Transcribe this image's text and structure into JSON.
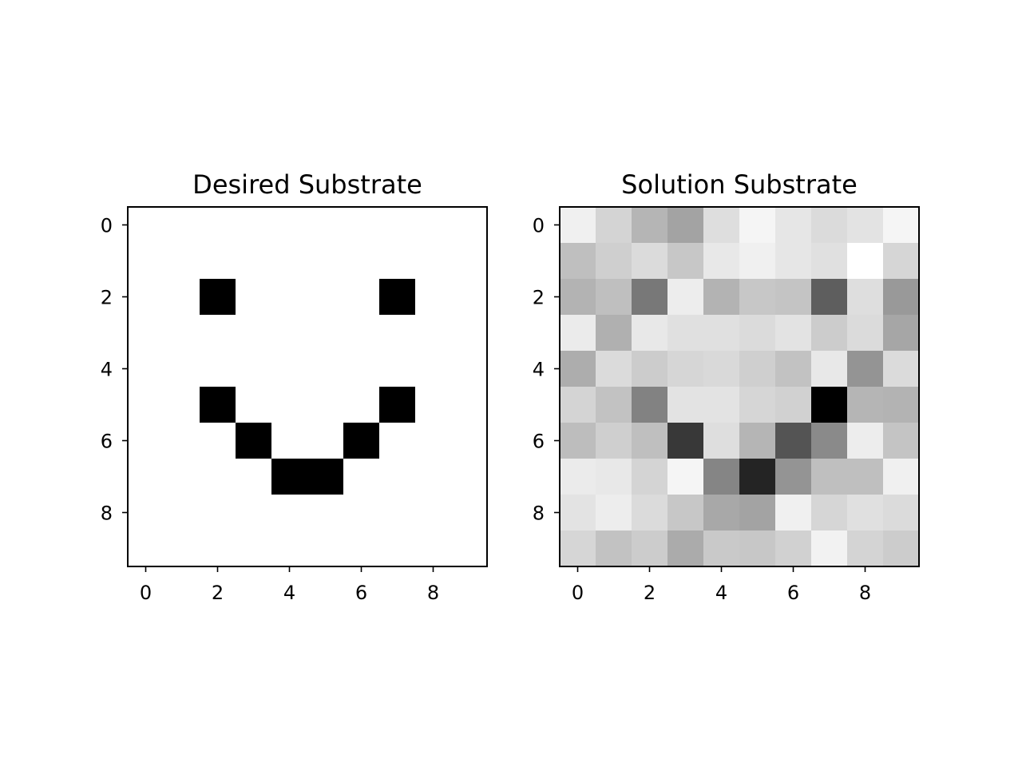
{
  "chart_data": [
    {
      "type": "heatmap",
      "title": "Desired Substrate",
      "colormap": "gray_r",
      "vmin": 0,
      "vmax": 1,
      "xticks": [
        0,
        2,
        4,
        6,
        8
      ],
      "yticks": [
        0,
        2,
        4,
        6,
        8
      ],
      "xlim": [
        -0.5,
        9.5
      ],
      "ylim": [
        9.5,
        -0.5
      ],
      "grid": false,
      "values": [
        [
          0,
          0,
          0,
          0,
          0,
          0,
          0,
          0,
          0,
          0
        ],
        [
          0,
          0,
          0,
          0,
          0,
          0,
          0,
          0,
          0,
          0
        ],
        [
          0,
          0,
          1,
          0,
          0,
          0,
          0,
          1,
          0,
          0
        ],
        [
          0,
          0,
          0,
          0,
          0,
          0,
          0,
          0,
          0,
          0
        ],
        [
          0,
          0,
          0,
          0,
          0,
          0,
          0,
          0,
          0,
          0
        ],
        [
          0,
          0,
          1,
          0,
          0,
          0,
          0,
          1,
          0,
          0
        ],
        [
          0,
          0,
          0,
          1,
          0,
          0,
          1,
          0,
          0,
          0
        ],
        [
          0,
          0,
          0,
          0,
          1,
          1,
          0,
          0,
          0,
          0
        ],
        [
          0,
          0,
          0,
          0,
          0,
          0,
          0,
          0,
          0,
          0
        ],
        [
          0,
          0,
          0,
          0,
          0,
          0,
          0,
          0,
          0,
          0
        ]
      ]
    },
    {
      "type": "heatmap",
      "title": "Solution Substrate",
      "colormap": "gray_r",
      "vmin": 0,
      "vmax": 1,
      "xticks": [
        0,
        2,
        4,
        6,
        8
      ],
      "yticks": [
        0,
        2,
        4,
        6,
        8
      ],
      "xlim": [
        -0.5,
        9.5
      ],
      "ylim": [
        9.5,
        -0.5
      ],
      "grid": false,
      "values": [
        [
          0.06,
          0.17,
          0.29,
          0.36,
          0.13,
          0.04,
          0.1,
          0.14,
          0.11,
          0.04
        ],
        [
          0.25,
          0.19,
          0.14,
          0.22,
          0.09,
          0.06,
          0.1,
          0.12,
          0.0,
          0.16
        ],
        [
          0.3,
          0.25,
          0.53,
          0.07,
          0.3,
          0.22,
          0.23,
          0.63,
          0.13,
          0.4
        ],
        [
          0.08,
          0.31,
          0.09,
          0.12,
          0.12,
          0.14,
          0.11,
          0.2,
          0.14,
          0.35
        ],
        [
          0.32,
          0.14,
          0.2,
          0.16,
          0.15,
          0.19,
          0.24,
          0.09,
          0.42,
          0.14
        ],
        [
          0.17,
          0.24,
          0.49,
          0.11,
          0.11,
          0.16,
          0.18,
          1.0,
          0.29,
          0.3
        ],
        [
          0.26,
          0.19,
          0.25,
          0.78,
          0.13,
          0.29,
          0.67,
          0.46,
          0.07,
          0.23
        ],
        [
          0.08,
          0.09,
          0.17,
          0.04,
          0.48,
          0.86,
          0.42,
          0.25,
          0.25,
          0.06
        ],
        [
          0.11,
          0.07,
          0.14,
          0.22,
          0.34,
          0.36,
          0.06,
          0.16,
          0.12,
          0.14
        ],
        [
          0.16,
          0.24,
          0.2,
          0.33,
          0.21,
          0.22,
          0.18,
          0.05,
          0.17,
          0.2
        ]
      ]
    }
  ]
}
